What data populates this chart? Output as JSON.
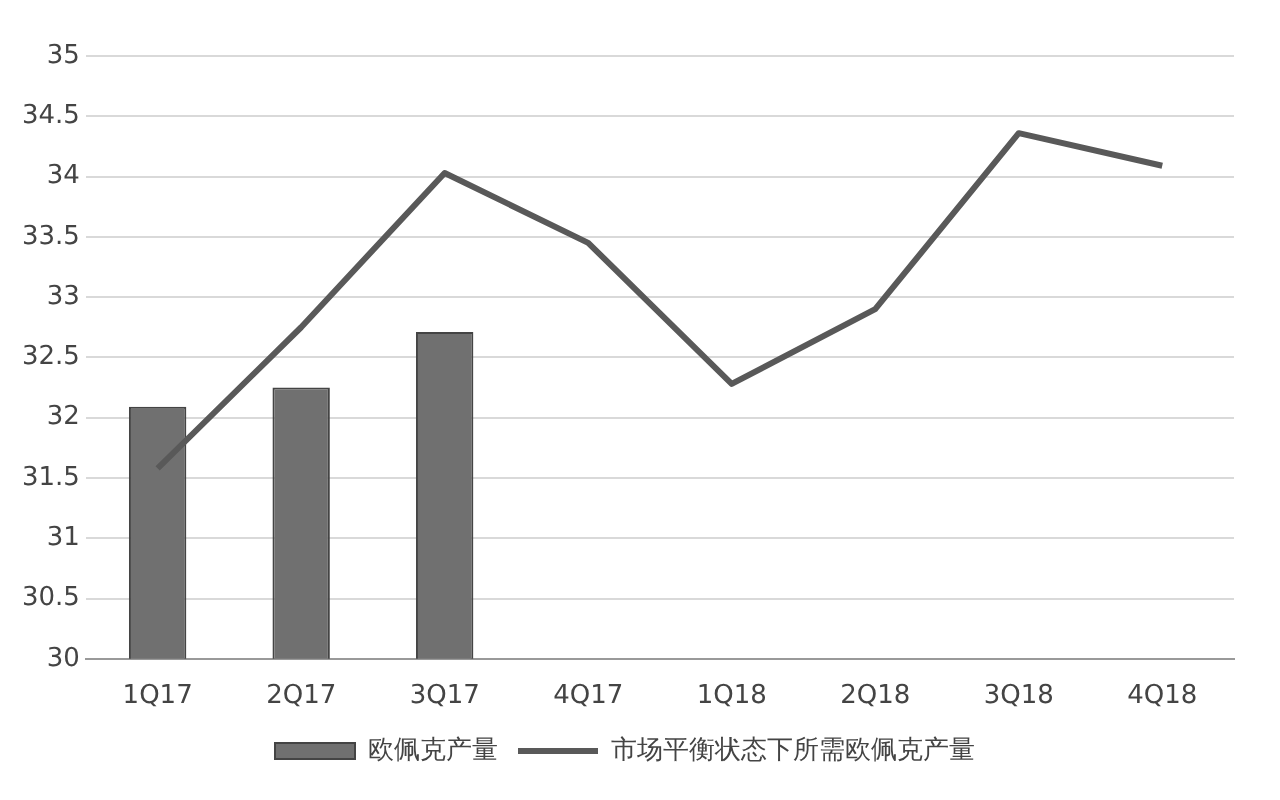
{
  "chart_data": {
    "type": "bar",
    "categories": [
      "1Q17",
      "2Q17",
      "3Q17",
      "4Q17",
      "1Q18",
      "2Q18",
      "3Q18",
      "4Q18"
    ],
    "series": [
      {
        "name": "欧佩克产量",
        "color": "#707070",
        "values": [
          32.09,
          32.25,
          32.71,
          null,
          null,
          null,
          null,
          null
        ]
      },
      {
        "name": "市场平衡状态下所需欧佩克产量",
        "type": "line",
        "color": "#595959",
        "values": [
          31.58,
          32.75,
          34.03,
          33.45,
          32.28,
          32.9,
          34.36,
          34.09
        ]
      }
    ],
    "ylim": [
      30,
      35
    ],
    "yticks": [
      30,
      30.5,
      31,
      31.5,
      32,
      32.5,
      33,
      33.5,
      34,
      34.5,
      35
    ],
    "grid": "y",
    "legend": "bottom",
    "marker": "none",
    "line_style": "solid"
  }
}
